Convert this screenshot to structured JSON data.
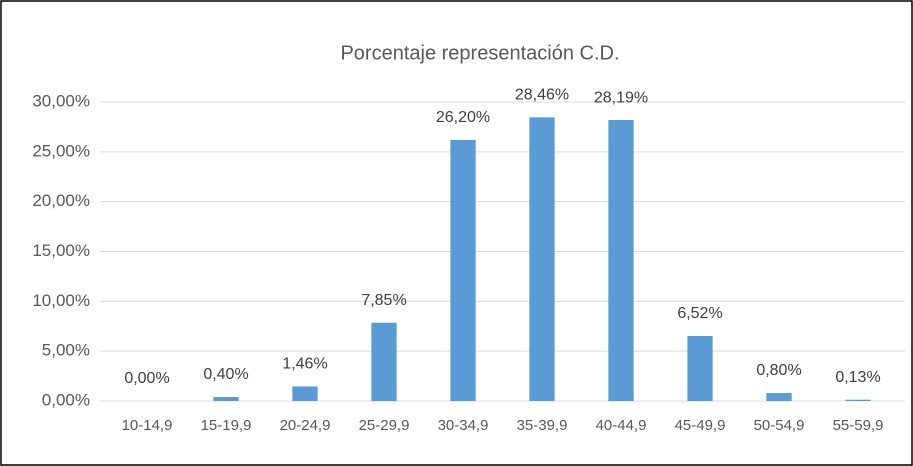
{
  "chart_data": {
    "type": "bar",
    "title": "Porcentaje representación C.D.",
    "categories": [
      "10-14,9",
      "15-19,9",
      "20-24,9",
      "25-29,9",
      "30-34,9",
      "35-39,9",
      "40-44,9",
      "45-49,9",
      "50-54,9",
      "55-59,9"
    ],
    "values": [
      0,
      0.4,
      1.46,
      7.85,
      26.2,
      28.46,
      28.19,
      6.52,
      0.8,
      0.13
    ],
    "value_labels": [
      "0,00%",
      "0,40%",
      "1,46%",
      "7,85%",
      "26,20%",
      "28,46%",
      "28,19%",
      "6,52%",
      "0,80%",
      "0,13%"
    ],
    "color": "#5b9bd5",
    "ylim": [
      0,
      30
    ],
    "yticks": [
      {
        "value": 0,
        "label": "0,00%"
      },
      {
        "value": 5,
        "label": "5,00%"
      },
      {
        "value": 10,
        "label": "10,00%"
      },
      {
        "value": 15,
        "label": "15,00%"
      },
      {
        "value": 20,
        "label": "20,00%"
      },
      {
        "value": 25,
        "label": "25,00%"
      },
      {
        "value": 30,
        "label": "30,00%"
      }
    ],
    "grid": true
  }
}
